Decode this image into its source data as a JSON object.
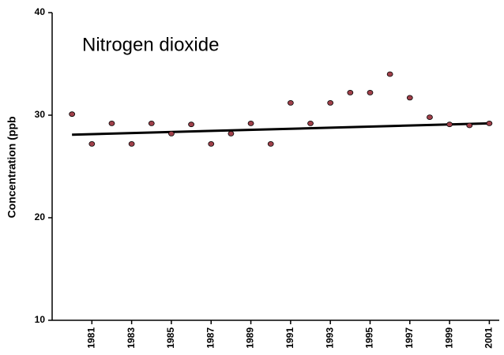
{
  "chart_data": {
    "type": "scatter",
    "title": "Nitrogen dioxide",
    "y_label": "Concentration (ppb",
    "x": [
      1980,
      1981,
      1982,
      1983,
      1984,
      1985,
      1986,
      1987,
      1988,
      1989,
      1990,
      1991,
      1992,
      1993,
      1994,
      1995,
      1996,
      1997,
      1998,
      1999,
      2000,
      2001
    ],
    "values": [
      30.1,
      27.2,
      29.2,
      27.2,
      29.2,
      28.2,
      29.1,
      27.2,
      28.2,
      29.2,
      27.2,
      31.2,
      29.2,
      31.2,
      32.2,
      32.2,
      34.0,
      31.7,
      29.8,
      29.1,
      29.0,
      29.2
    ],
    "color": "#a0404a",
    "trend": {
      "x": [
        1980,
        2001
      ],
      "values": [
        28.1,
        29.2
      ],
      "color": "#000000"
    },
    "xlim": [
      1979,
      2001.5
    ],
    "xticks": [
      1981,
      1983,
      1985,
      1987,
      1989,
      1991,
      1993,
      1995,
      1997,
      1999,
      2001
    ],
    "ylim": [
      10,
      40
    ],
    "yticks": [
      10,
      20,
      30,
      40
    ]
  }
}
